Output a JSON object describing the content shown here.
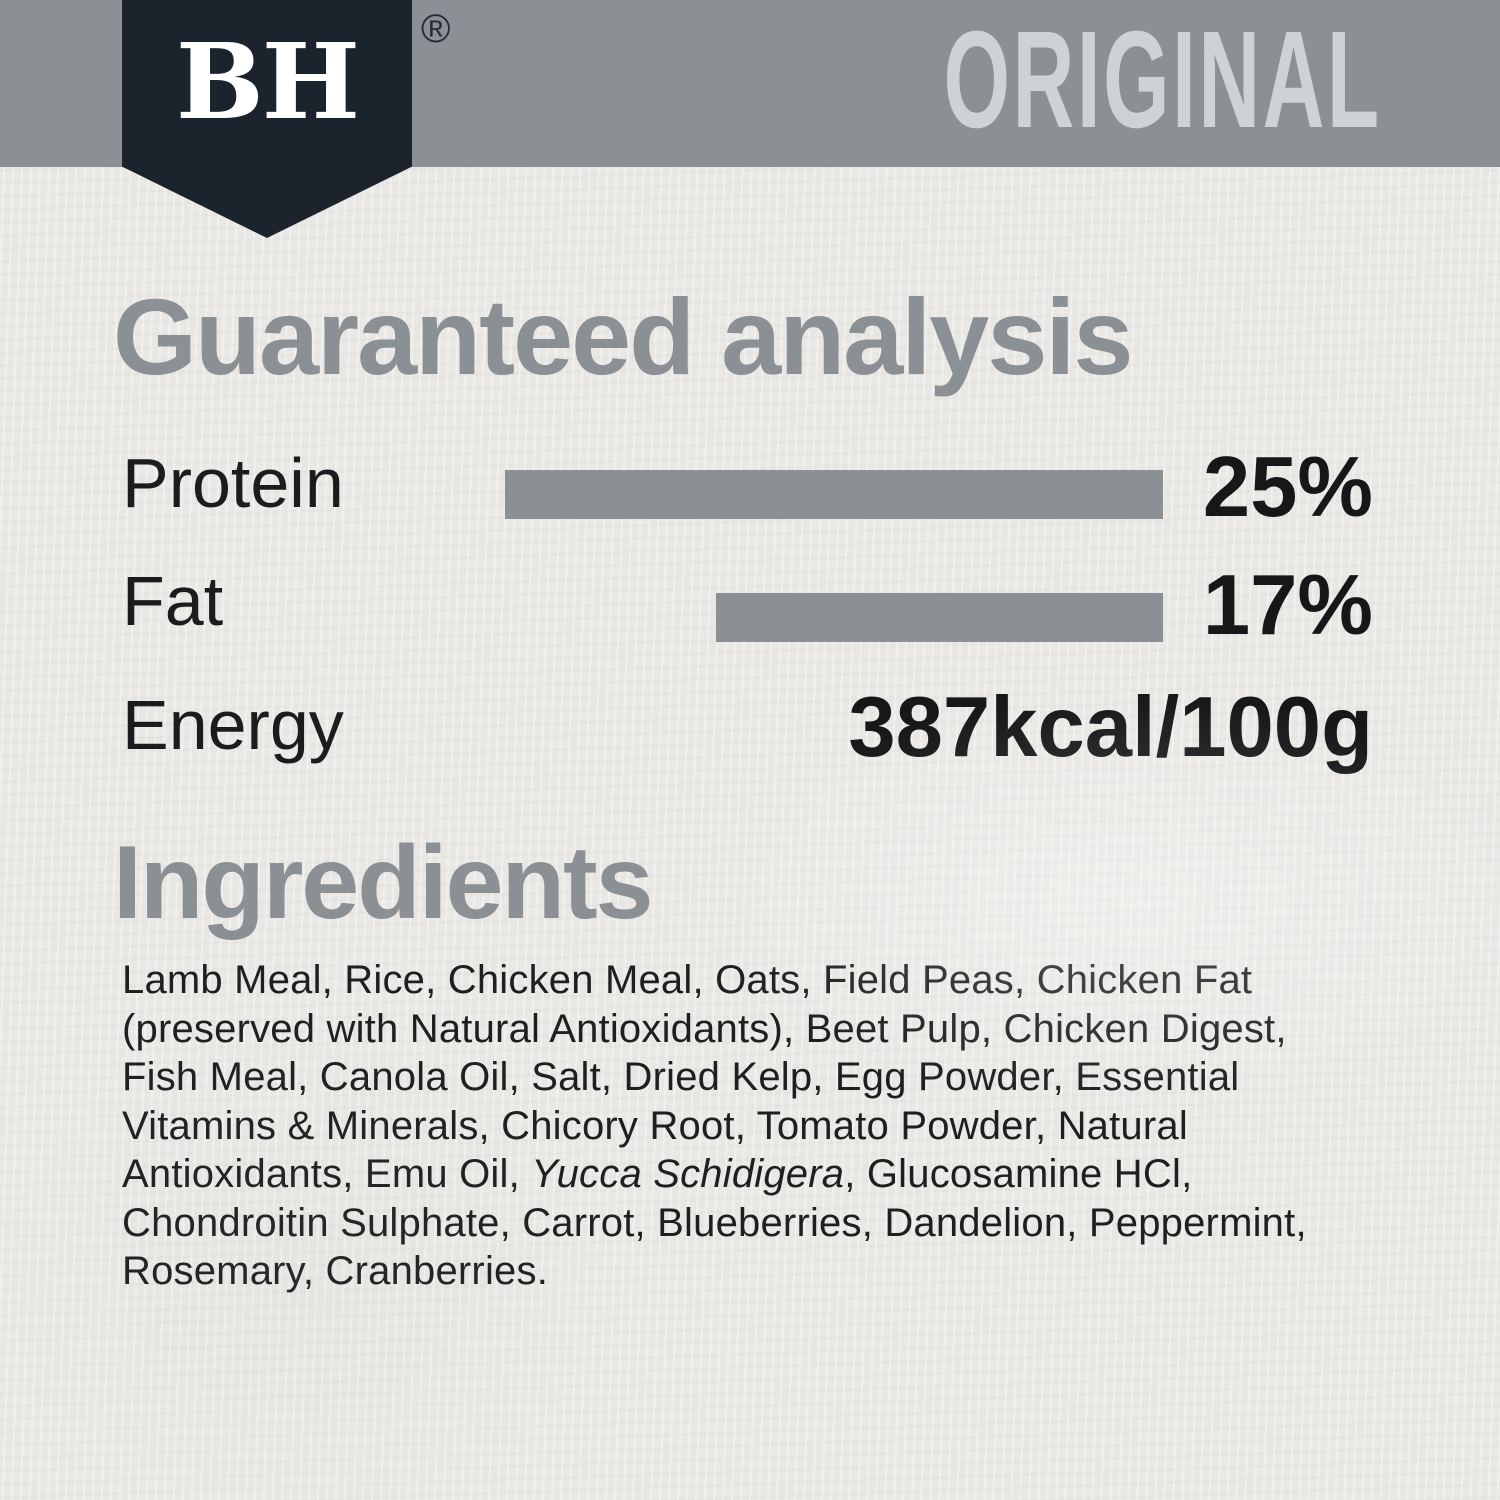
{
  "brand": {
    "logo_text": "BH",
    "registered_mark": "®",
    "variant": "ORIGINAL"
  },
  "analysis": {
    "heading": "Guaranteed analysis",
    "rows": [
      {
        "label": "Protein",
        "value_text": "25%",
        "value_pct": 25
      },
      {
        "label": "Fat",
        "value_text": "17%",
        "value_pct": 17
      },
      {
        "label": "Energy",
        "value_text": "387kcal/100g"
      }
    ]
  },
  "ingredients": {
    "heading": "Ingredients",
    "lines": [
      "Lamb Meal, Rice, Chicken Meal, Oats, Field Peas, Chicken Fat",
      "(preserved with Natural Antioxidants), Beet Pulp, Chicken Digest,",
      "Fish Meal, Canola Oil, Salt, Dried Kelp, Egg Powder, Essential",
      "Vitamins & Minerals, Chicory Root, Tomato Powder, Natural",
      {
        "before": "Antioxidants, Emu Oil, ",
        "italic": "Yucca Schidigera",
        "after": ", Glucosamine HCl,"
      },
      "Chondroitin Sulphate, Carrot, Blueberries, Dandelion, Peppermint,",
      "Rosemary, Cranberries."
    ]
  },
  "colors": {
    "background": "#e9e8e5",
    "band_gray": "#8b9095",
    "badge_navy": "#1b232d",
    "heading_gray": "#8b9094",
    "bar_gray": "#8a9094",
    "variant_text": "#ced2d5",
    "text_dark": "#1b1c1e"
  }
}
